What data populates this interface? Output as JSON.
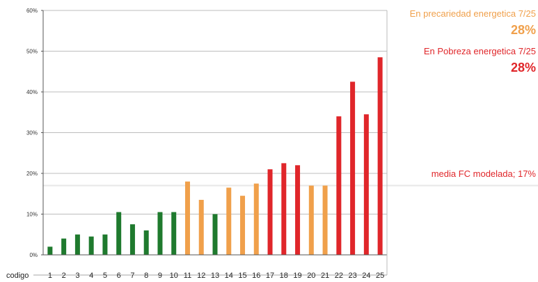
{
  "chart_data": {
    "type": "bar",
    "x_axis_label": "codigo",
    "categories": [
      "1",
      "2",
      "3",
      "4",
      "5",
      "6",
      "7",
      "8",
      "9",
      "10",
      "11",
      "12",
      "13",
      "14",
      "15",
      "16",
      "17",
      "18",
      "19",
      "20",
      "21",
      "22",
      "23",
      "24",
      "25"
    ],
    "values": [
      2,
      4,
      5,
      4.5,
      5,
      10.5,
      7.5,
      6,
      10.5,
      10.5,
      18,
      13.5,
      10,
      16.5,
      14.5,
      17.5,
      21,
      22.5,
      22,
      17,
      17,
      34,
      42.5,
      34.5,
      48.5
    ],
    "bar_colors": [
      "#1f7a2e",
      "#1f7a2e",
      "#1f7a2e",
      "#1f7a2e",
      "#1f7a2e",
      "#1f7a2e",
      "#1f7a2e",
      "#1f7a2e",
      "#1f7a2e",
      "#1f7a2e",
      "#f0a04b",
      "#f0a04b",
      "#1f7a2e",
      "#f0a04b",
      "#f0a04b",
      "#f0a04b",
      "#e0262a",
      "#e0262a",
      "#e0262a",
      "#f0a04b",
      "#f0a04b",
      "#e0262a",
      "#e0262a",
      "#e0262a",
      "#e0262a"
    ],
    "ylim": [
      0,
      60
    ],
    "yticks": [
      0,
      10,
      20,
      30,
      40,
      50,
      60
    ],
    "ytick_labels": [
      "0%",
      "10%",
      "20%",
      "30%",
      "40%",
      "50%",
      "60%"
    ],
    "grid": true,
    "reference_line": {
      "value": 17
    }
  },
  "annotations": {
    "precariedad_label": "En precariedad energetica 7/25",
    "precariedad_value": "28%",
    "pobreza_label": "En Pobreza energetica 7/25",
    "pobreza_value": "28%",
    "media_label": "media FC modelada; 17%"
  },
  "colors": {
    "green": "#1f7a2e",
    "orange": "#f0a04b",
    "red": "#e0262a",
    "grid": "#bdbdbd",
    "reference": "#e7e7e7"
  }
}
